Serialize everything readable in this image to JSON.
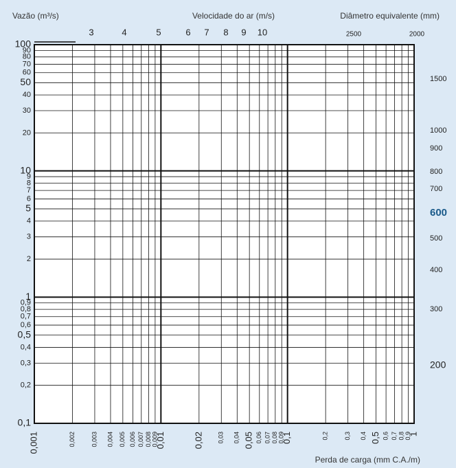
{
  "chart_data": {
    "type": "nomogram",
    "y_label": "Vazão (m³/s)",
    "velocity_label": "Velocidade do ar (m/s)",
    "diameter_label": "Diâmetro equivalente (mm)",
    "x_label": "Perda de carga (mm C.A./m)",
    "xscale": "log",
    "yscale": "log",
    "grid": true,
    "xlim": [
      0.001,
      1
    ],
    "ylim": [
      0.1,
      100
    ],
    "xticks": [
      {
        "value": 0.001,
        "label": "0,001"
      },
      {
        "value": 0.002,
        "label": "0,002"
      },
      {
        "value": 0.003,
        "label": "0,003"
      },
      {
        "value": 0.004,
        "label": "0,004"
      },
      {
        "value": 0.005,
        "label": "0,005"
      },
      {
        "value": 0.006,
        "label": "0,006"
      },
      {
        "value": 0.007,
        "label": "0,007"
      },
      {
        "value": 0.008,
        "label": "0,008"
      },
      {
        "value": 0.009,
        "label": "0,009"
      },
      {
        "value": 0.01,
        "label": "0,01"
      },
      {
        "value": 0.02,
        "label": "0,02"
      },
      {
        "value": 0.03,
        "label": "0,03"
      },
      {
        "value": 0.04,
        "label": "0,04"
      },
      {
        "value": 0.05,
        "label": "0,05"
      },
      {
        "value": 0.06,
        "label": "0,06"
      },
      {
        "value": 0.07,
        "label": "0,07"
      },
      {
        "value": 0.08,
        "label": "0,08"
      },
      {
        "value": 0.09,
        "label": "0,09"
      },
      {
        "value": 0.1,
        "label": "0,1"
      },
      {
        "value": 0.2,
        "label": "0,2"
      },
      {
        "value": 0.3,
        "label": "0,3"
      },
      {
        "value": 0.4,
        "label": "0,4"
      },
      {
        "value": 0.5,
        "label": "0,5"
      },
      {
        "value": 0.6,
        "label": "0,6"
      },
      {
        "value": 0.7,
        "label": "0,7"
      },
      {
        "value": 0.8,
        "label": "0,8"
      },
      {
        "value": 0.9,
        "label": "0,9"
      },
      1
    ],
    "yticks": [
      100,
      90,
      80,
      70,
      60,
      50,
      40,
      30,
      20,
      10,
      9,
      8,
      7,
      6,
      5,
      4,
      3,
      2,
      1,
      {
        "value": 0.9,
        "label": "0,9"
      },
      {
        "value": 0.8,
        "label": "0,8"
      },
      {
        "value": 0.7,
        "label": "0,7"
      },
      {
        "value": 0.6,
        "label": "0,6"
      },
      {
        "value": 0.5,
        "label": "0,5"
      },
      {
        "value": 0.4,
        "label": "0,4"
      },
      {
        "value": 0.3,
        "label": "0,3"
      },
      {
        "value": 0.2,
        "label": "0,2"
      },
      {
        "value": 0.1,
        "label": "0,1"
      }
    ],
    "velocity_ticks": [
      3,
      4,
      5,
      6,
      7,
      8,
      9,
      10
    ],
    "diameter_top_ticks": [
      2500,
      2000
    ],
    "diameter_ticks": [
      1500,
      1000,
      900,
      800,
      700,
      600,
      500,
      400,
      300,
      200
    ],
    "grid_color": "#111111",
    "highlight_color": "#1a5a8a"
  }
}
